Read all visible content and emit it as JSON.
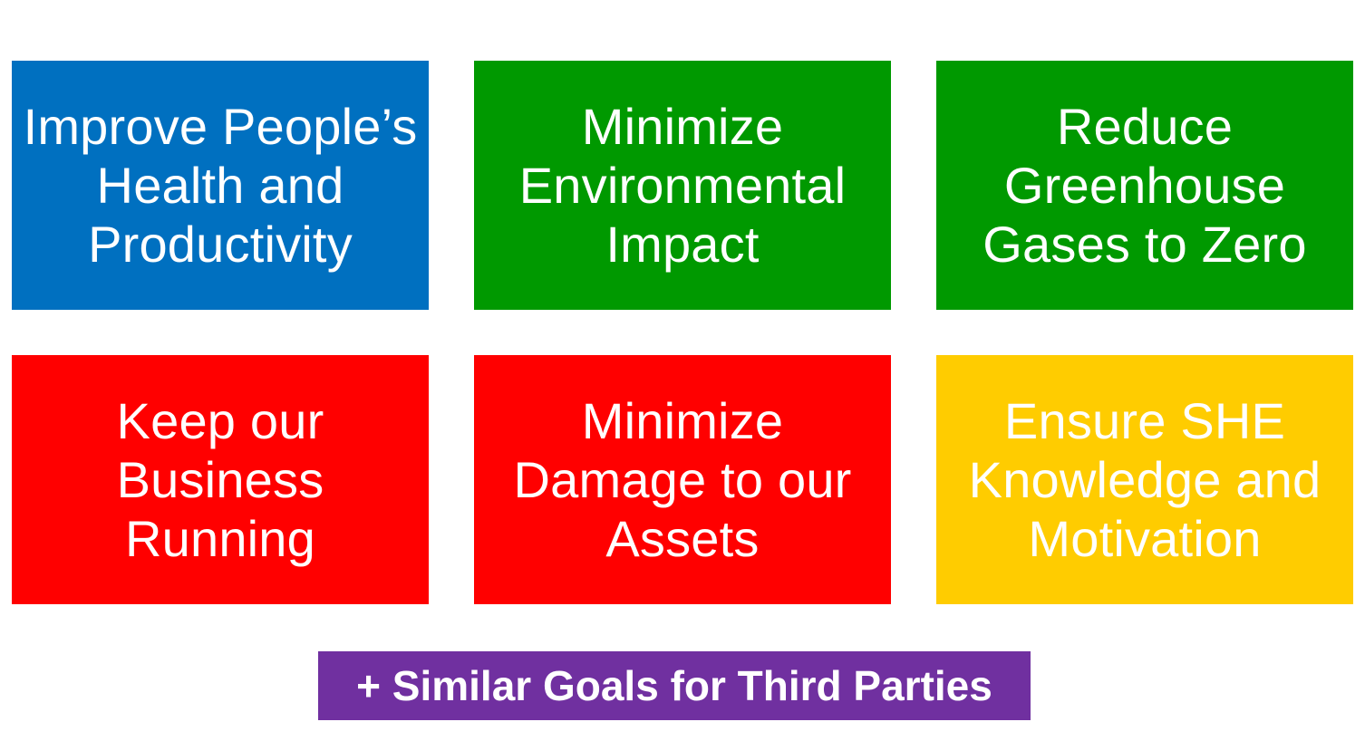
{
  "tiles": [
    {
      "text": "Improve People’s\nHealth and\nProductivity",
      "color": "#0070C0"
    },
    {
      "text": "Minimize\nEnvironmental\nImpact",
      "color": "#009900"
    },
    {
      "text": "Reduce\nGreenhouse\nGases to Zero",
      "color": "#009900"
    },
    {
      "text": "Keep our\nBusiness\nRunning",
      "color": "#FF0000"
    },
    {
      "text": "Minimize\nDamage to our\nAssets",
      "color": "#FF0000"
    },
    {
      "text": "Ensure SHE\nKnowledge and\nMotivation",
      "color": "#FFCC00"
    }
  ],
  "footer": {
    "text": "+ Similar Goals for Third Parties",
    "color": "#7030A0"
  }
}
